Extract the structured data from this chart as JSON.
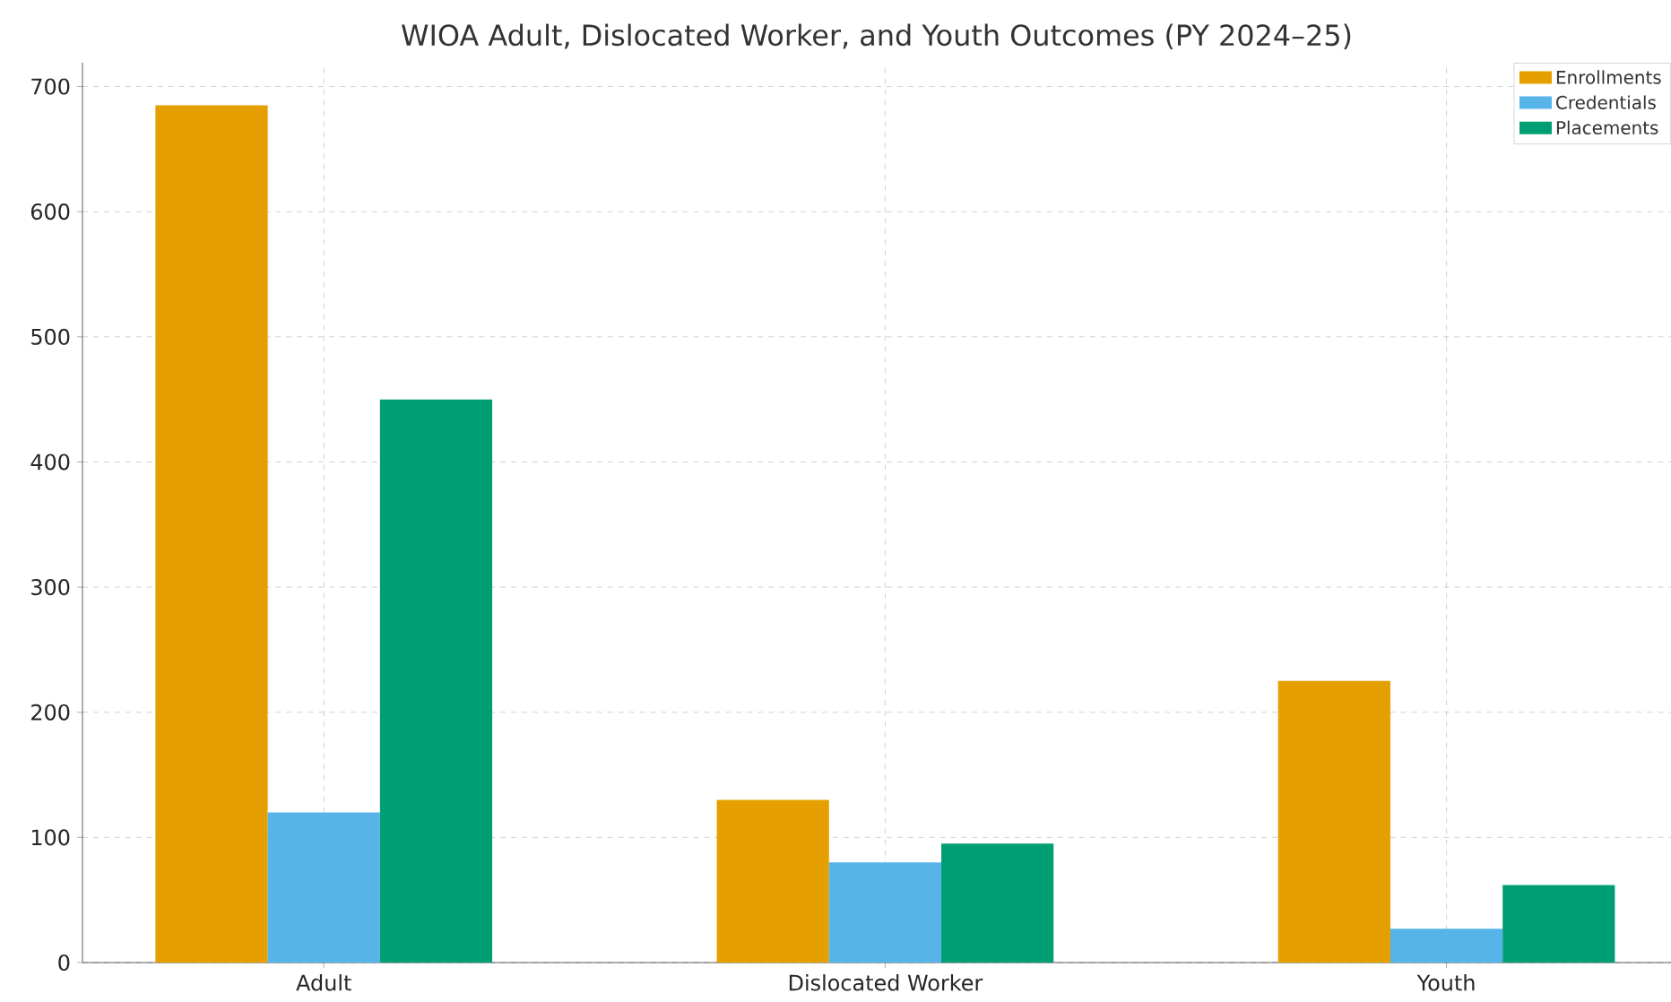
{
  "chart_data": {
    "type": "bar",
    "title": "WIOA Adult, Dislocated Worker, and Youth Outcomes (PY 2024–25)",
    "categories": [
      "Adult",
      "Dislocated Worker",
      "Youth"
    ],
    "series": [
      {
        "name": "Enrollments",
        "color": "#e69f00",
        "values": [
          685,
          130,
          225
        ]
      },
      {
        "name": "Credentials",
        "color": "#56b4e9",
        "values": [
          120,
          80,
          27
        ]
      },
      {
        "name": "Placements",
        "color": "#009e73",
        "values": [
          450,
          95,
          62
        ]
      }
    ],
    "ylim": [
      0,
      719
    ],
    "yticks": [
      0,
      100,
      200,
      300,
      400,
      500,
      600,
      700
    ],
    "grid": true,
    "legend": "top right"
  }
}
